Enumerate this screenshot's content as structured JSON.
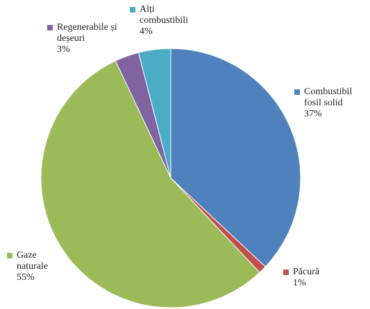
{
  "chart_data": {
    "type": "pie",
    "categories": [
      "Combustibil fosil solid",
      "Păcură",
      "Gaze naturale",
      "Regenerabile și deșeuri",
      "Alți combustibili"
    ],
    "values": [
      37,
      1,
      55,
      3,
      4
    ],
    "value_labels": [
      "37%",
      "1%",
      "55%",
      "3%",
      "4%"
    ],
    "colors": [
      "#4f81bd",
      "#c0504d",
      "#9bbb59",
      "#8064a2",
      "#4bacc6"
    ]
  }
}
